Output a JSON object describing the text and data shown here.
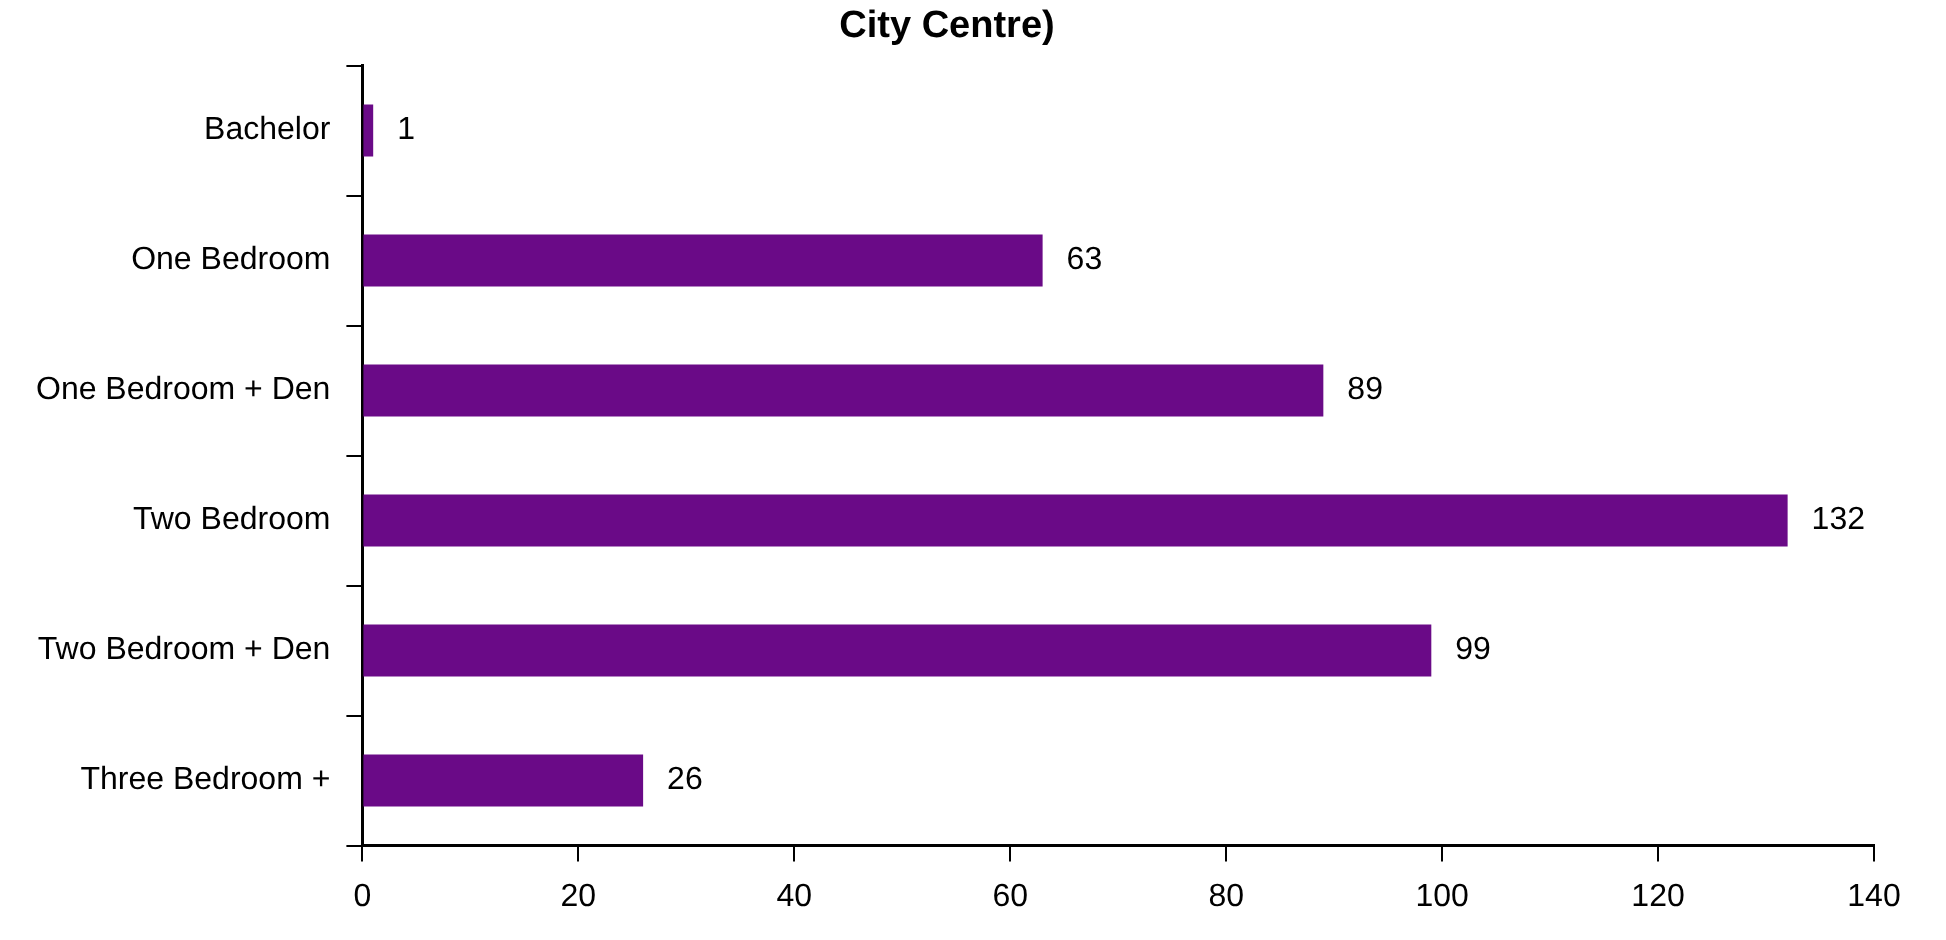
{
  "chart_data": {
    "type": "bar",
    "orientation": "horizontal",
    "title": "City Centre)",
    "categories": [
      "Bachelor",
      "One Bedroom",
      "One Bedroom + Den",
      "Two Bedroom",
      "Two Bedroom + Den",
      "Three Bedroom +"
    ],
    "values": [
      1,
      63,
      89,
      132,
      99,
      26
    ],
    "color": "#6a0a87",
    "xlim": [
      0,
      140
    ],
    "xticks": [
      0,
      20,
      40,
      60,
      80,
      100,
      120,
      140
    ],
    "grid": false,
    "legend": false,
    "data_labels": true
  }
}
